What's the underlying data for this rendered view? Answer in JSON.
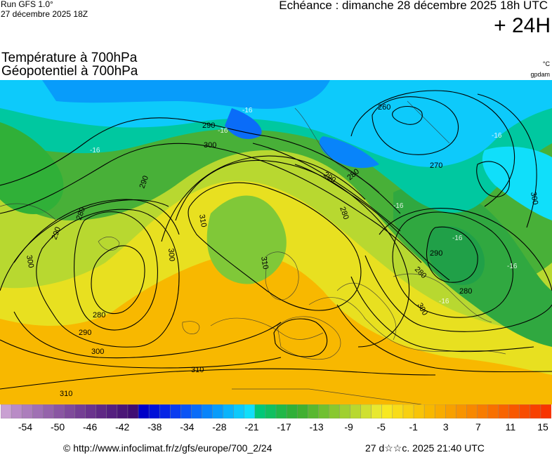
{
  "header": {
    "run": "Run GFS 1.0°",
    "run_date": "27 décembre 2025 18Z",
    "echeance": "Echéance : dimanche 28 décembre 2025 18h UTC",
    "hours": "+ 24H",
    "title_line1": "Température à 700hPa",
    "title_line2": "Géopotentiel à 700hPa",
    "unit_temp": "°C",
    "unit_geo": "gpdam"
  },
  "map": {
    "contour_labels": [
      {
        "text": "290"
      },
      {
        "text": "300"
      },
      {
        "text": "290"
      },
      {
        "text": "310"
      },
      {
        "text": "300"
      },
      {
        "text": "280"
      },
      {
        "text": "290"
      },
      {
        "text": "280"
      },
      {
        "text": "290"
      },
      {
        "text": "300"
      },
      {
        "text": "310"
      },
      {
        "text": "310"
      },
      {
        "text": "300"
      },
      {
        "text": "260"
      },
      {
        "text": "270"
      },
      {
        "text": "280"
      },
      {
        "text": "290"
      },
      {
        "text": "280"
      },
      {
        "text": "280"
      },
      {
        "text": "290"
      },
      {
        "text": "280"
      },
      {
        "text": "300"
      },
      {
        "text": "310"
      },
      {
        "text": "300"
      }
    ],
    "temp_labels": [
      {
        "text": "-16"
      },
      {
        "text": "-16"
      },
      {
        "text": "-16"
      },
      {
        "text": "-16"
      },
      {
        "text": "-16"
      },
      {
        "text": "-16"
      },
      {
        "text": "-16"
      },
      {
        "text": "-16"
      }
    ]
  },
  "colorbar": {
    "colors": [
      "#c9a0d2",
      "#b98bc6",
      "#ac7dbc",
      "#a070b4",
      "#9563ab",
      "#8a56a3",
      "#7f4a9b",
      "#743e94",
      "#6a338d",
      "#5f2885",
      "#541f7f",
      "#4a1677",
      "#400d73",
      "#0000c8",
      "#0010d8",
      "#0624e6",
      "#0a3cf0",
      "#0b54f5",
      "#0a6cf8",
      "#0884fa",
      "#089cfa",
      "#0ab4fb",
      "#0dcafb",
      "#10dffa",
      "#00c878",
      "#10c060",
      "#20b848",
      "#30b038",
      "#40b030",
      "#58b830",
      "#70c030",
      "#88c830",
      "#a0d030",
      "#b8d830",
      "#d0e030",
      "#e8e830",
      "#f8e820",
      "#f8dc18",
      "#f8d010",
      "#f8c408",
      "#f8b800",
      "#f8ac00",
      "#f8a000",
      "#f89400",
      "#f88800",
      "#f87c00",
      "#f87000",
      "#f86400",
      "#f85800",
      "#f84c00",
      "#f84000",
      "#f83400"
    ],
    "labels": [
      "-54",
      "-50",
      "-46",
      "-42",
      "-38",
      "-34",
      "-28",
      "-21",
      "-17",
      "-13",
      "-9",
      "-5",
      "-1",
      "3",
      "7",
      "11",
      "15"
    ]
  },
  "footer": {
    "url": "© http://www.infoclimat.fr/z/gfs/europe/700_2/24",
    "timestamp": "27 d☆☆c. 2025 21:40 UTC"
  }
}
